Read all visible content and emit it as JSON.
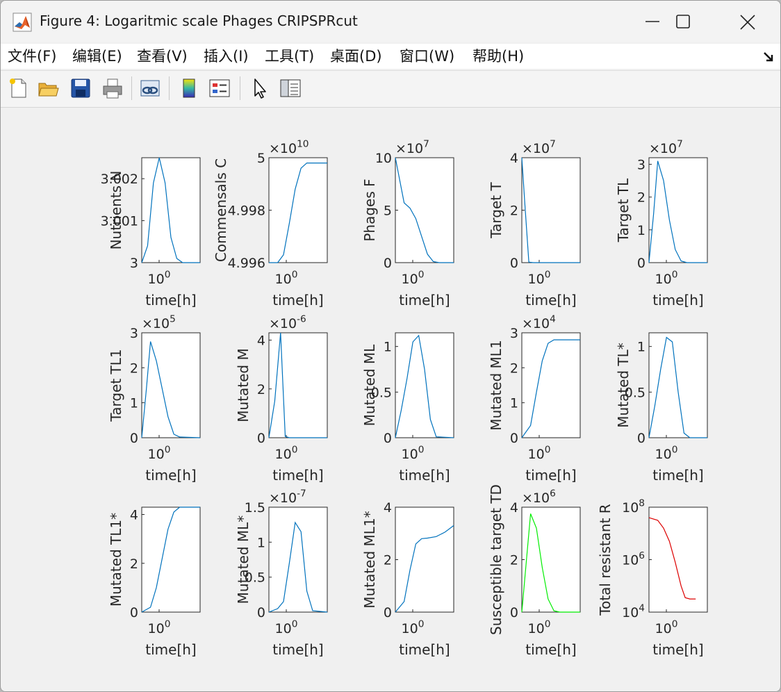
{
  "window": {
    "title": "Figure 4: Logaritmic scale Phages CRIPSPRcut",
    "app_icon": "matlab-icon",
    "controls": [
      "minimize-icon",
      "maximize-icon",
      "close-icon"
    ]
  },
  "menu": {
    "items": [
      "文件(F)",
      "编辑(E)",
      "查看(V)",
      "插入(I)",
      "工具(T)",
      "桌面(D)",
      "窗口(W)",
      "帮助(H)"
    ],
    "overflow_icon": "dock-arrow-icon"
  },
  "toolbar": {
    "items": [
      {
        "name": "new-figure-icon"
      },
      {
        "name": "open-file-icon"
      },
      {
        "name": "save-icon"
      },
      {
        "name": "print-icon"
      },
      {
        "name": "link-plot-icon"
      },
      {
        "name": "insert-colorbar-icon"
      },
      {
        "name": "insert-legend-icon"
      },
      {
        "name": "edit-plot-icon"
      },
      {
        "name": "property-inspector-icon"
      }
    ]
  },
  "colors": {
    "blue": "#0072bd",
    "green": "#00ee00",
    "red": "#dd0000"
  },
  "chart_data": [
    {
      "type": "line",
      "ylabel": "Nutrients N",
      "xlabel": "time[h]",
      "ylim": [
        3,
        3.0025
      ],
      "yticks": [
        "3",
        "3.001",
        "3.002"
      ],
      "yticks_v": [
        3,
        3.001,
        3.002
      ],
      "exponent": "",
      "xtick": "10^0",
      "color": "blue",
      "x": [
        0,
        0.1,
        0.2,
        0.3,
        0.4,
        0.5,
        0.6,
        0.7,
        0.8,
        0.9,
        1
      ],
      "y": [
        3,
        3.0004,
        3.0019,
        3.0025,
        3.0019,
        3.0006,
        3.0001,
        3,
        3,
        3,
        3
      ]
    },
    {
      "type": "line",
      "ylabel": "Commensals C",
      "xlabel": "time[h]",
      "ylim": [
        4.996,
        5
      ],
      "yticks": [
        "4.996",
        "4.998",
        "5"
      ],
      "yticks_v": [
        4.996,
        4.998,
        5
      ],
      "exponent": "10",
      "xtick": "10^0",
      "color": "blue",
      "x": [
        0,
        0.15,
        0.25,
        0.35,
        0.45,
        0.55,
        0.65,
        0.75,
        1
      ],
      "y": [
        4.996,
        4.996,
        4.9963,
        4.9975,
        4.9988,
        4.9996,
        4.9998,
        4.9998,
        4.9998
      ]
    },
    {
      "type": "line",
      "ylabel": "Phages F",
      "xlabel": "time[h]",
      "ylim": [
        0,
        10
      ],
      "yticks": [
        "0",
        "5",
        "10"
      ],
      "yticks_v": [
        0,
        5,
        10
      ],
      "exponent": "7",
      "xtick": "10^0",
      "color": "blue",
      "x": [
        0,
        0.15,
        0.25,
        0.35,
        0.45,
        0.55,
        0.65,
        0.75,
        1
      ],
      "y": [
        10,
        5.7,
        5.2,
        4.2,
        2.5,
        0.8,
        0.1,
        0,
        0
      ]
    },
    {
      "type": "line",
      "ylabel": "Target T",
      "xlabel": "time[h]",
      "ylim": [
        0,
        4
      ],
      "yticks": [
        "0",
        "2",
        "4"
      ],
      "yticks_v": [
        0,
        2,
        4
      ],
      "exponent": "7",
      "xtick": "10^0",
      "color": "blue",
      "x": [
        0,
        0.05,
        0.12,
        0.2,
        0.3,
        1
      ],
      "y": [
        4,
        2.3,
        0.02,
        0,
        0,
        0
      ]
    },
    {
      "type": "line",
      "ylabel": "Target TL",
      "xlabel": "time[h]",
      "ylim": [
        0,
        3.2
      ],
      "yticks": [
        "0",
        "1",
        "2",
        "3"
      ],
      "yticks_v": [
        0,
        1,
        2,
        3
      ],
      "exponent": "7",
      "xtick": "10^0",
      "color": "blue",
      "x": [
        0,
        0.08,
        0.15,
        0.25,
        0.35,
        0.45,
        0.55,
        0.65,
        1
      ],
      "y": [
        0,
        1.5,
        3.1,
        2.5,
        1.3,
        0.4,
        0.05,
        0,
        0
      ]
    },
    {
      "type": "line",
      "ylabel": "Target TL1",
      "xlabel": "time[h]",
      "ylim": [
        0,
        3
      ],
      "yticks": [
        "0",
        "1",
        "2",
        "3"
      ],
      "yticks_v": [
        0,
        1,
        2,
        3
      ],
      "exponent": "5",
      "xtick": "10^0",
      "color": "blue",
      "x": [
        0,
        0.08,
        0.15,
        0.25,
        0.35,
        0.45,
        0.55,
        0.65,
        1
      ],
      "y": [
        0,
        1.4,
        2.75,
        2.2,
        1.4,
        0.6,
        0.1,
        0.02,
        0
      ]
    },
    {
      "type": "line",
      "ylabel": "Mutated M",
      "xlabel": "time[h]",
      "ylim": [
        0,
        4.3
      ],
      "yticks": [
        "0",
        "2",
        "4"
      ],
      "yticks_v": [
        0,
        2,
        4
      ],
      "exponent": "-6",
      "xtick": "10^0",
      "color": "blue",
      "x": [
        0,
        0.1,
        0.2,
        0.28,
        0.35,
        1
      ],
      "y": [
        0,
        1.5,
        4.3,
        0.05,
        0,
        0
      ]
    },
    {
      "type": "line",
      "ylabel": "Mutated ML",
      "xlabel": "time[h]",
      "ylim": [
        0,
        1.15
      ],
      "yticks": [
        "0",
        "0.5",
        "1"
      ],
      "yticks_v": [
        0,
        0.5,
        1
      ],
      "exponent": "",
      "xtick": "10^0",
      "color": "blue",
      "x": [
        0,
        0.1,
        0.2,
        0.3,
        0.4,
        0.5,
        0.6,
        0.7,
        1
      ],
      "y": [
        0,
        0.3,
        0.65,
        1.05,
        1.12,
        0.75,
        0.2,
        0.01,
        0
      ]
    },
    {
      "type": "line",
      "ylabel": "Mutated ML1",
      "xlabel": "time[h]",
      "ylim": [
        0,
        3
      ],
      "yticks": [
        "0",
        "1",
        "2",
        "3"
      ],
      "yticks_v": [
        0,
        1,
        2,
        3
      ],
      "exponent": "4",
      "xtick": "10^0",
      "color": "blue",
      "x": [
        0,
        0.15,
        0.25,
        0.35,
        0.45,
        0.55,
        0.7,
        1
      ],
      "y": [
        0,
        0.35,
        1.3,
        2.2,
        2.7,
        2.8,
        2.8,
        2.8
      ]
    },
    {
      "type": "line",
      "ylabel": "Mutated TL*",
      "xlabel": "time[h]",
      "ylim": [
        0,
        1.15
      ],
      "yticks": [
        "0",
        "0.5",
        "1"
      ],
      "yticks_v": [
        0,
        0.5,
        1
      ],
      "exponent": "",
      "xtick": "10^0",
      "color": "blue",
      "x": [
        0,
        0.1,
        0.2,
        0.3,
        0.4,
        0.5,
        0.6,
        0.7,
        1
      ],
      "y": [
        0,
        0.35,
        0.75,
        1.1,
        1.05,
        0.5,
        0.05,
        0,
        0
      ]
    },
    {
      "type": "line",
      "ylabel": "Mutated TL1*",
      "xlabel": "time[h]",
      "ylim": [
        0,
        4.3
      ],
      "yticks": [
        "0",
        "2",
        "4"
      ],
      "yticks_v": [
        0,
        2,
        4
      ],
      "exponent": "",
      "xtick": "10^0",
      "color": "blue",
      "x": [
        0,
        0.15,
        0.25,
        0.35,
        0.45,
        0.55,
        0.65,
        0.75,
        1
      ],
      "y": [
        0,
        0.2,
        1.0,
        2.2,
        3.4,
        4.1,
        4.3,
        4.3,
        4.3
      ]
    },
    {
      "type": "line",
      "ylabel": "Mutated ML*",
      "xlabel": "time[h]",
      "ylim": [
        0,
        1.5
      ],
      "yticks": [
        "0",
        "0.5",
        "1",
        "1.5"
      ],
      "yticks_v": [
        0,
        0.5,
        1,
        1.5
      ],
      "exponent": "-7",
      "xtick": "10^0",
      "color": "blue",
      "x": [
        0,
        0.15,
        0.25,
        0.35,
        0.45,
        0.55,
        0.65,
        0.75,
        1
      ],
      "y": [
        0,
        0.05,
        0.15,
        0.7,
        1.28,
        1.15,
        0.3,
        0.02,
        0
      ]
    },
    {
      "type": "line",
      "ylabel": "Mutated ML1*",
      "xlabel": "time[h]",
      "ylim": [
        0,
        4
      ],
      "yticks": [
        "0",
        "2",
        "4"
      ],
      "yticks_v": [
        0,
        2,
        4
      ],
      "exponent": "",
      "xtick": "10^0",
      "color": "blue",
      "x": [
        0,
        0.15,
        0.25,
        0.35,
        0.45,
        0.55,
        0.7,
        0.85,
        1
      ],
      "y": [
        0,
        0.4,
        1.6,
        2.6,
        2.8,
        2.82,
        2.88,
        3.05,
        3.3
      ]
    },
    {
      "type": "line",
      "ylabel": "Susceptible target TD",
      "xlabel": "time[h]",
      "ylim": [
        0,
        4
      ],
      "yticks": [
        "0",
        "2",
        "4"
      ],
      "yticks_v": [
        0,
        2,
        4
      ],
      "exponent": "6",
      "xtick": "10^0",
      "color": "green",
      "x": [
        0,
        0.08,
        0.15,
        0.25,
        0.35,
        0.45,
        0.55,
        0.65,
        1
      ],
      "y": [
        0,
        2.0,
        3.75,
        3.2,
        1.7,
        0.5,
        0.05,
        0,
        0
      ]
    },
    {
      "type": "line",
      "scale": "log",
      "ylabel": "Total resistant R",
      "xlabel": "time[h]",
      "ylim": [
        4,
        8
      ],
      "yticks": [
        "10^4",
        "10^6",
        "10^8"
      ],
      "yticks_v": [
        4,
        6,
        8
      ],
      "exponent": "",
      "xtick": "10^0",
      "color": "red",
      "x": [
        0,
        0.15,
        0.25,
        0.35,
        0.45,
        0.55,
        0.62,
        0.7,
        0.8
      ],
      "y": [
        7.6,
        7.5,
        7.2,
        6.7,
        5.9,
        5.0,
        4.55,
        4.5,
        4.5
      ]
    }
  ]
}
